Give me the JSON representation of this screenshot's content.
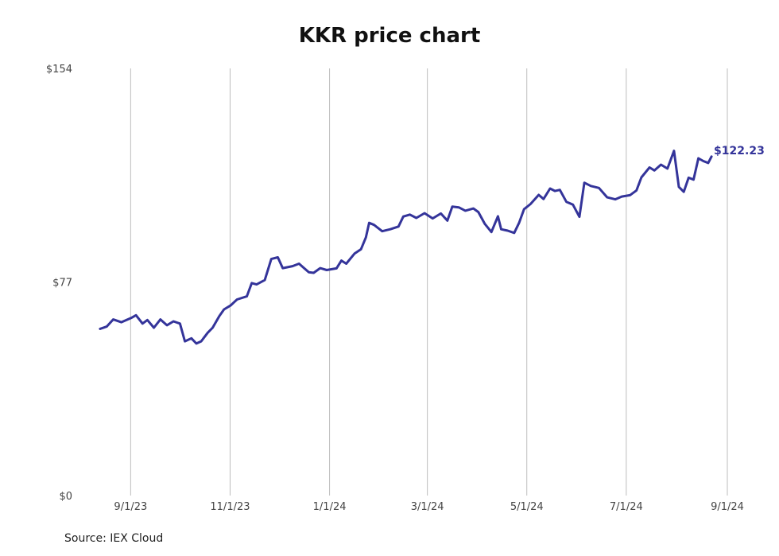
{
  "chart_data": {
    "type": "line",
    "title": "KKR price chart",
    "source": "Source: IEX Cloud",
    "line_color": "#34349a",
    "grid_color": "#bdbdbd",
    "x_range": [
      "2023-08-25",
      "2024-09-01"
    ],
    "ylim": [
      0,
      154
    ],
    "y_ticks": [
      {
        "value": 0,
        "label": "$0"
      },
      {
        "value": 77,
        "label": "$77"
      },
      {
        "value": 154,
        "label": "$154"
      }
    ],
    "x_ticks": [
      {
        "date": "2023-09-01",
        "label": "9/1/23"
      },
      {
        "date": "2023-11-01",
        "label": "11/1/23"
      },
      {
        "date": "2024-01-01",
        "label": "1/1/24"
      },
      {
        "date": "2024-03-01",
        "label": "3/1/24"
      },
      {
        "date": "2024-05-01",
        "label": "5/1/24"
      },
      {
        "date": "2024-07-01",
        "label": "7/1/24"
      },
      {
        "date": "2024-09-01",
        "label": "9/1/24"
      }
    ],
    "end_label": "$122.23",
    "series": [
      {
        "values": [
          [
            "2023-08-24",
            60.1
          ],
          [
            "2023-08-28",
            60.9
          ],
          [
            "2023-09-01",
            63.5
          ],
          [
            "2023-09-06",
            62.5
          ],
          [
            "2023-09-12",
            64.0
          ],
          [
            "2023-09-15",
            65.0
          ],
          [
            "2023-09-19",
            62.0
          ],
          [
            "2023-09-22",
            63.3
          ],
          [
            "2023-09-26",
            60.5
          ],
          [
            "2023-09-30",
            63.5
          ],
          [
            "2023-10-04",
            61.4
          ],
          [
            "2023-10-08",
            62.8
          ],
          [
            "2023-10-12",
            62.0
          ],
          [
            "2023-10-15",
            55.6
          ],
          [
            "2023-10-19",
            56.7
          ],
          [
            "2023-10-22",
            54.8
          ],
          [
            "2023-10-25",
            55.6
          ],
          [
            "2023-10-29",
            58.7
          ],
          [
            "2023-11-01",
            60.5
          ],
          [
            "2023-11-05",
            64.6
          ],
          [
            "2023-11-08",
            67.1
          ],
          [
            "2023-11-12",
            68.5
          ],
          [
            "2023-11-16",
            70.7
          ],
          [
            "2023-11-22",
            71.8
          ],
          [
            "2023-11-25",
            76.6
          ],
          [
            "2023-11-28",
            76.1
          ],
          [
            "2023-12-03",
            77.7
          ],
          [
            "2023-12-07",
            85.3
          ],
          [
            "2023-12-11",
            85.9
          ],
          [
            "2023-12-14",
            82.0
          ],
          [
            "2023-12-20",
            82.7
          ],
          [
            "2023-12-24",
            83.6
          ],
          [
            "2023-12-30",
            80.5
          ],
          [
            "2024-01-02",
            80.3
          ],
          [
            "2024-01-06",
            82.0
          ],
          [
            "2024-01-10",
            81.3
          ],
          [
            "2024-01-16",
            81.9
          ],
          [
            "2024-01-19",
            84.7
          ],
          [
            "2024-01-22",
            83.6
          ],
          [
            "2024-01-27",
            87.2
          ],
          [
            "2024-01-31",
            88.8
          ],
          [
            "2024-02-03",
            93.1
          ],
          [
            "2024-02-05",
            98.3
          ],
          [
            "2024-02-08",
            97.6
          ],
          [
            "2024-02-13",
            95.3
          ],
          [
            "2024-02-18",
            96.0
          ],
          [
            "2024-02-23",
            97.0
          ],
          [
            "2024-02-26",
            100.6
          ],
          [
            "2024-03-01",
            101.3
          ],
          [
            "2024-03-05",
            100.1
          ],
          [
            "2024-03-10",
            101.8
          ],
          [
            "2024-03-15",
            99.9
          ],
          [
            "2024-03-20",
            101.7
          ],
          [
            "2024-03-24",
            99.1
          ],
          [
            "2024-03-27",
            104.2
          ],
          [
            "2024-03-31",
            103.9
          ],
          [
            "2024-04-04",
            102.7
          ],
          [
            "2024-04-09",
            103.5
          ],
          [
            "2024-04-12",
            102.2
          ],
          [
            "2024-04-16",
            97.9
          ],
          [
            "2024-04-20",
            95.0
          ],
          [
            "2024-04-24",
            100.7
          ],
          [
            "2024-04-26",
            96.0
          ],
          [
            "2024-04-30",
            95.5
          ],
          [
            "2024-05-04",
            94.7
          ],
          [
            "2024-05-07",
            98.3
          ],
          [
            "2024-05-10",
            103.2
          ],
          [
            "2024-05-14",
            105.1
          ],
          [
            "2024-05-19",
            108.4
          ],
          [
            "2024-05-22",
            106.9
          ],
          [
            "2024-05-26",
            110.7
          ],
          [
            "2024-05-29",
            109.8
          ],
          [
            "2024-06-01",
            110.2
          ],
          [
            "2024-06-05",
            105.9
          ],
          [
            "2024-06-09",
            104.9
          ],
          [
            "2024-06-13",
            100.5
          ],
          [
            "2024-06-16",
            112.8
          ],
          [
            "2024-06-20",
            111.6
          ],
          [
            "2024-06-25",
            110.9
          ],
          [
            "2024-06-30",
            107.5
          ],
          [
            "2024-07-05",
            106.8
          ],
          [
            "2024-07-09",
            107.8
          ],
          [
            "2024-07-14",
            108.3
          ],
          [
            "2024-07-18",
            110.0
          ],
          [
            "2024-07-21",
            114.7
          ],
          [
            "2024-07-26",
            118.3
          ],
          [
            "2024-07-29",
            117.2
          ],
          [
            "2024-08-02",
            119.3
          ],
          [
            "2024-08-06",
            117.9
          ],
          [
            "2024-08-10",
            124.3
          ],
          [
            "2024-08-13",
            111.3
          ],
          [
            "2024-08-16",
            109.5
          ],
          [
            "2024-08-19",
            114.6
          ],
          [
            "2024-08-22",
            113.9
          ],
          [
            "2024-08-25",
            121.6
          ],
          [
            "2024-08-28",
            120.6
          ],
          [
            "2024-08-31",
            119.9
          ],
          [
            "2024-09-02",
            122.23
          ]
        ]
      }
    ]
  }
}
